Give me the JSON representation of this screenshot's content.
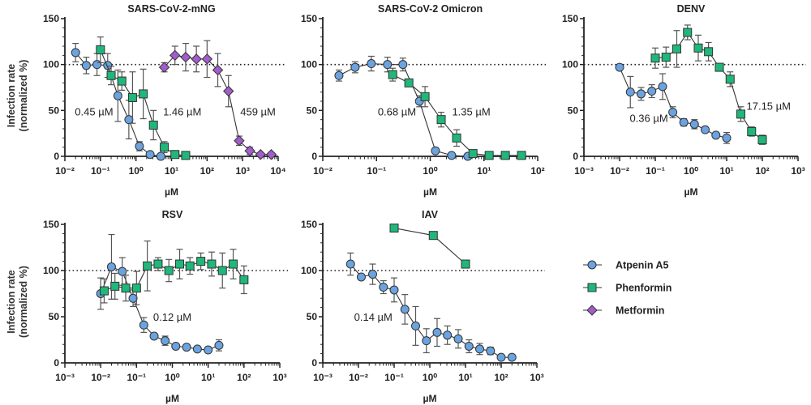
{
  "colors": {
    "Atpenin A5": "#6aa3e0",
    "Phenformin": "#1fb77a",
    "Metformin": "#a35ccc",
    "axis": "#222222",
    "error": "#555555"
  },
  "legend": {
    "placement": "right",
    "items": [
      {
        "name": "Atpenin A5",
        "marker": "circle"
      },
      {
        "name": "Phenformin",
        "marker": "square"
      },
      {
        "name": "Metformin",
        "marker": "diamond"
      }
    ]
  },
  "chart_data": [
    {
      "type": "line",
      "title": "SARS-CoV-2-mNG",
      "xlabel": "µM",
      "ylabel": [
        "Infection rate",
        "(normalized %)"
      ],
      "xscale": "log",
      "xlim": [
        0.01,
        10000
      ],
      "ylim": [
        0,
        150
      ],
      "yticks": [
        0,
        50,
        100,
        150
      ],
      "xtick_labels": [
        "10⁻²",
        "10⁻¹",
        "10⁰",
        "10¹",
        "10²",
        "10³",
        "10⁴"
      ],
      "reference_line": 100,
      "series": [
        {
          "name": "Atpenin A5",
          "x": [
            0.02,
            0.04,
            0.08,
            0.16,
            0.31,
            0.63,
            1.25,
            2.5,
            5
          ],
          "y": [
            113,
            99,
            100,
            99,
            66,
            40,
            11,
            2,
            0
          ],
          "err": [
            10,
            9,
            12,
            13,
            28,
            21,
            5,
            0,
            0
          ]
        },
        {
          "name": "Phenformin",
          "x": [
            0.1,
            0.2,
            0.4,
            0.8,
            1.6,
            3.1,
            6.25,
            12.5,
            25
          ],
          "y": [
            116,
            88,
            82,
            64,
            68,
            34,
            10,
            2,
            1
          ],
          "err": [
            14,
            10,
            10,
            28,
            27,
            16,
            6,
            0,
            0
          ]
        },
        {
          "name": "Metformin",
          "x": [
            6.25,
            12.5,
            25,
            50,
            100,
            200,
            400,
            800,
            1600,
            3200,
            6400
          ],
          "y": [
            97,
            110,
            108,
            106,
            106,
            94,
            71,
            17,
            6,
            2,
            2
          ],
          "err": [
            5,
            10,
            15,
            14,
            20,
            18,
            17,
            5,
            4,
            0,
            0
          ]
        }
      ],
      "annotations": [
        {
          "text": "0.45 µM",
          "x": 0.066,
          "y": 49
        },
        {
          "text": "1.46 µM",
          "x": 20,
          "y": 49
        },
        {
          "text": "459 µM",
          "x": 2700,
          "y": 49
        }
      ]
    },
    {
      "type": "line",
      "title": "SARS-CoV-2 Omicron",
      "xlabel": "µM",
      "xscale": "log",
      "xlim": [
        0.01,
        100
      ],
      "ylim": [
        0,
        150
      ],
      "yticks": [
        0,
        50,
        100,
        150
      ],
      "xtick_labels": [
        "10⁻²",
        "10⁻¹",
        "10⁰",
        "10¹",
        "10²"
      ],
      "reference_line": 100,
      "series": [
        {
          "name": "Atpenin A5",
          "x": [
            0.02,
            0.04,
            0.08,
            0.16,
            0.31,
            0.63,
            1.25,
            2.5,
            5
          ],
          "y": [
            88,
            97,
            101,
            100,
            100,
            60,
            6,
            1,
            0
          ],
          "err": [
            6,
            6,
            8,
            8,
            7,
            6,
            0,
            0,
            0
          ]
        },
        {
          "name": "Phenformin",
          "x": [
            0.2,
            0.4,
            0.8,
            1.6,
            3.1,
            6.25,
            12.5,
            25,
            50
          ],
          "y": [
            89,
            80,
            65,
            40,
            20,
            3,
            1,
            1,
            1
          ],
          "err": [
            7,
            2,
            11,
            8,
            9,
            0,
            0,
            0,
            0
          ]
        }
      ],
      "annotations": [
        {
          "text": "0.68 µM",
          "x": 0.24,
          "y": 49
        },
        {
          "text": "1.35 µM",
          "x": 5.8,
          "y": 49
        }
      ]
    },
    {
      "type": "line",
      "title": "DENV",
      "xlabel": "µM",
      "xscale": "log",
      "xlim": [
        0.001,
        1000
      ],
      "ylim": [
        0,
        150
      ],
      "yticks": [
        0,
        50,
        100,
        150
      ],
      "xtick_labels": [
        "10⁻³",
        "10⁻²",
        "10⁻¹",
        "10⁰",
        "10¹",
        "10²",
        "10³"
      ],
      "reference_line": 100,
      "series": [
        {
          "name": "Atpenin A5",
          "x": [
            0.01,
            0.02,
            0.04,
            0.08,
            0.16,
            0.31,
            0.63,
            1.25,
            2.5,
            5,
            10
          ],
          "y": [
            97,
            70,
            68,
            71,
            76,
            48,
            37,
            35,
            29,
            23,
            20
          ],
          "err": [
            0,
            17,
            7,
            7,
            14,
            6,
            4,
            5,
            0,
            0,
            6
          ]
        },
        {
          "name": "Phenformin",
          "x": [
            0.1,
            0.2,
            0.4,
            0.8,
            1.6,
            3.1,
            6.25,
            12.5,
            25,
            50,
            100
          ],
          "y": [
            107,
            108,
            117,
            135,
            118,
            114,
            97,
            84,
            46,
            27,
            18
          ],
          "err": [
            11,
            11,
            20,
            8,
            14,
            10,
            0,
            8,
            8,
            5,
            5
          ]
        }
      ],
      "annotations": [
        {
          "text": "0.36 µM",
          "x": 0.066,
          "y": 42
        },
        {
          "text": "17.15 µM",
          "x": 150,
          "y": 55
        }
      ]
    },
    {
      "type": "line",
      "title": "RSV",
      "xlabel": "µM",
      "ylabel": [
        "Infection rate",
        "(normalized %)"
      ],
      "xscale": "log",
      "xlim": [
        0.001,
        1000
      ],
      "ylim": [
        0,
        150
      ],
      "yticks": [
        0,
        50,
        100,
        150
      ],
      "xtick_labels": [
        "10⁻³",
        "10⁻²",
        "10⁻¹",
        "10⁰",
        "10¹",
        "10²",
        "10³"
      ],
      "reference_line": 100,
      "series": [
        {
          "name": "Atpenin A5",
          "x": [
            0.01,
            0.02,
            0.04,
            0.08,
            0.16,
            0.31,
            0.63,
            1.25,
            2.5,
            5,
            10,
            20
          ],
          "y": [
            75,
            104,
            99,
            70,
            41,
            29,
            24,
            18,
            17,
            15,
            14,
            19
          ],
          "err": [
            17,
            35,
            15,
            9,
            8,
            0,
            5,
            0,
            0,
            0,
            0,
            6
          ]
        },
        {
          "name": "Phenformin",
          "x": [
            0.0125,
            0.025,
            0.05,
            0.1,
            0.2,
            0.4,
            0.8,
            1.6,
            3.1,
            6.25,
            12.5,
            25,
            50,
            100
          ],
          "y": [
            78,
            83,
            81,
            81,
            105,
            107,
            100,
            107,
            105,
            110,
            107,
            100,
            107,
            90
          ],
          "err": [
            13,
            14,
            14,
            18,
            27,
            7,
            12,
            16,
            9,
            9,
            13,
            19,
            16,
            15
          ]
        }
      ],
      "annotations": [
        {
          "text": "0.12 µM",
          "x": 1.0,
          "y": 50
        }
      ]
    },
    {
      "type": "line",
      "title": "IAV",
      "xlabel": "µM",
      "xscale": "log",
      "xlim": [
        0.001,
        1000
      ],
      "ylim": [
        0,
        150
      ],
      "yticks": [
        0,
        50,
        100,
        150
      ],
      "xtick_labels": [
        "10⁻³",
        "10⁻²",
        "10⁻¹",
        "10⁰",
        "10¹",
        "10²",
        "10³"
      ],
      "reference_line": 100,
      "series": [
        {
          "name": "Atpenin A5",
          "x": [
            0.006,
            0.012,
            0.025,
            0.05,
            0.1,
            0.2,
            0.4,
            0.8,
            1.6,
            3.1,
            6.25,
            12.5,
            25,
            50,
            100,
            200
          ],
          "y": [
            107,
            93,
            96,
            82,
            79,
            58,
            40,
            24,
            33,
            30,
            26,
            18,
            15,
            13,
            6,
            6
          ],
          "err": [
            12,
            3,
            11,
            7,
            13,
            16,
            21,
            13,
            15,
            10,
            10,
            7,
            6,
            4,
            0,
            0
          ]
        },
        {
          "name": "Phenformin",
          "x": [
            0.1,
            1.25,
            10
          ],
          "y": [
            146,
            138,
            107
          ],
          "err": [
            0,
            0,
            0
          ]
        }
      ],
      "annotations": [
        {
          "text": "0.14 µM",
          "x": 0.026,
          "y": 50
        }
      ]
    }
  ]
}
